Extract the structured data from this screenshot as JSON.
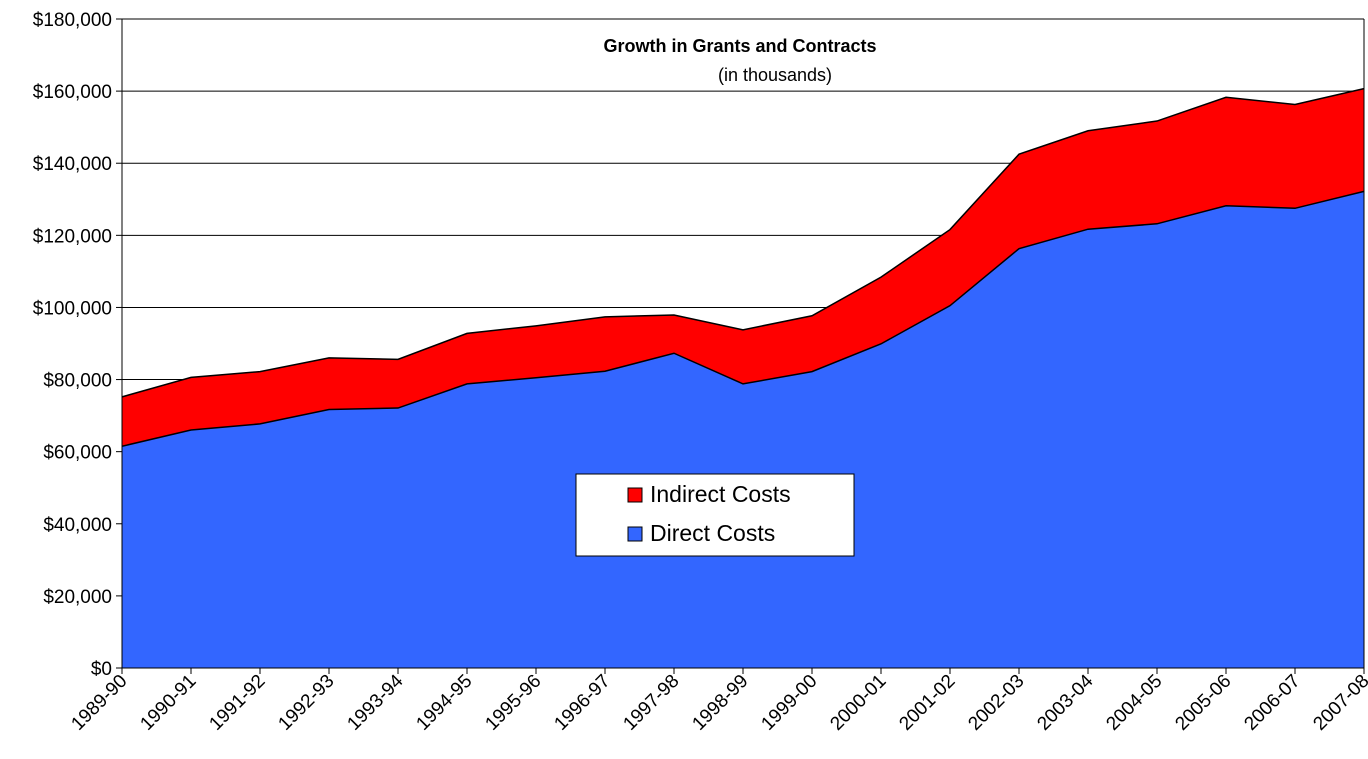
{
  "chart_data": {
    "type": "area",
    "stacked": true,
    "title": "Growth in Grants and Contracts",
    "subtitle": "(in thousands)",
    "xlabel": "",
    "ylabel": "",
    "categories": [
      "1989-90",
      "1990-91",
      "1991-92",
      "1992-93",
      "1993-94",
      "1994-95",
      "1995-96",
      "1996-97",
      "1997-98",
      "1998-99",
      "1999-00",
      "2000-01",
      "2001-02",
      "2002-03",
      "2003-04",
      "2004-05",
      "2005-06",
      "2006-07",
      "2007-08"
    ],
    "series": [
      {
        "name": "Direct Costs",
        "color": "#3366FF",
        "values": [
          61500,
          66000,
          67700,
          71700,
          72100,
          78800,
          80500,
          82300,
          87300,
          78800,
          82200,
          89900,
          100500,
          116300,
          121700,
          123200,
          128200,
          127500,
          132200
        ]
      },
      {
        "name": "Indirect Costs",
        "color": "#FF0000",
        "values": [
          13700,
          14600,
          14500,
          14300,
          13500,
          14000,
          14400,
          15100,
          10600,
          15000,
          15500,
          18500,
          21100,
          26200,
          27300,
          28500,
          30100,
          28800,
          28500
        ]
      }
    ],
    "ylim": [
      0,
      180000
    ],
    "yticks": [
      0,
      20000,
      40000,
      60000,
      80000,
      100000,
      120000,
      140000,
      160000,
      180000
    ],
    "ytick_labels": [
      "$0",
      "$20,000",
      "$40,000",
      "$60,000",
      "$80,000",
      "$100,000",
      "$120,000",
      "$140,000",
      "$160,000",
      "$180,000"
    ],
    "grid": true,
    "legend": {
      "placement": "center",
      "entries": [
        "Indirect Costs",
        "Direct Costs"
      ]
    }
  }
}
